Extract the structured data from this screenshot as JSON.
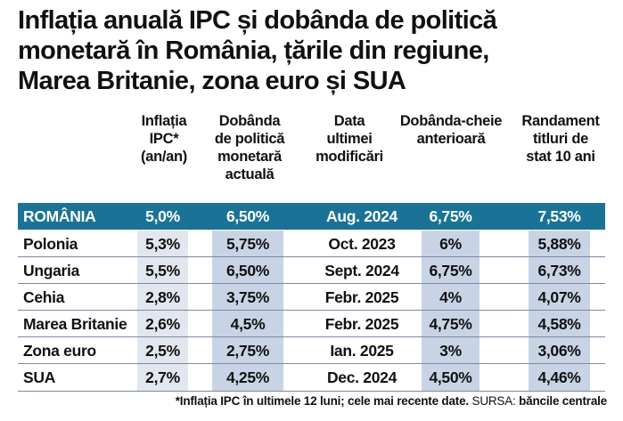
{
  "title": {
    "line1": "Inflația anuală IPC și dobânda de politică",
    "line2": "monetară în România, țările din regiune,",
    "line3": "Marea Britanie, zona euro și SUA"
  },
  "headers": {
    "ipc": [
      "Inflația",
      "IPC*",
      "(an/an)"
    ],
    "dobanda": [
      "Dobânda",
      "de politică",
      "monetară",
      "actuală"
    ],
    "data": [
      "Data",
      "ultimei",
      "modificări"
    ],
    "anterioara": [
      "Dobânda-cheie",
      "anterioară"
    ],
    "randament": [
      "Randament",
      "titluri de",
      "stat 10 ani"
    ]
  },
  "rows": [
    {
      "country": "ROMÂNIA",
      "ipc": "5,0%",
      "dobanda": "6,50%",
      "data": "Aug. 2024",
      "anterioara": "6,75%",
      "randament": "7,53%"
    },
    {
      "country": "Polonia",
      "ipc": "5,3%",
      "dobanda": "5,75%",
      "data": "Oct. 2023",
      "anterioara": "6%",
      "randament": "5,88%"
    },
    {
      "country": "Ungaria",
      "ipc": "5,5%",
      "dobanda": "6,50%",
      "data": "Sept. 2024",
      "anterioara": "6,75%",
      "randament": "6,73%"
    },
    {
      "country": "Cehia",
      "ipc": "2,8%",
      "dobanda": "3,75%",
      "data": "Febr. 2025",
      "anterioara": "4%",
      "randament": "4,07%"
    },
    {
      "country": "Marea Britanie",
      "ipc": "2,6%",
      "dobanda": "4,5%",
      "data": "Febr. 2025",
      "anterioara": "4,75%",
      "randament": "4,58%"
    },
    {
      "country": "Zona euro",
      "ipc": "2,5%",
      "dobanda": "2,75%",
      "data": "Ian. 2025",
      "anterioara": "3%",
      "randament": "3,06%"
    },
    {
      "country": "SUA",
      "ipc": "2,7%",
      "dobanda": "4,25%",
      "data": "Dec. 2024",
      "anterioara": "4,50%",
      "randament": "4,46%"
    }
  ],
  "footnote": {
    "note": "*Inflația IPC în ultimele 12 luni; cele mai recente date.",
    "source_label": "SURSA:",
    "source": "băncile centrale"
  },
  "colors": {
    "band": "#1a7396",
    "shade_light": "#e2e6ee",
    "shade_dark": "#c8d4e5"
  }
}
